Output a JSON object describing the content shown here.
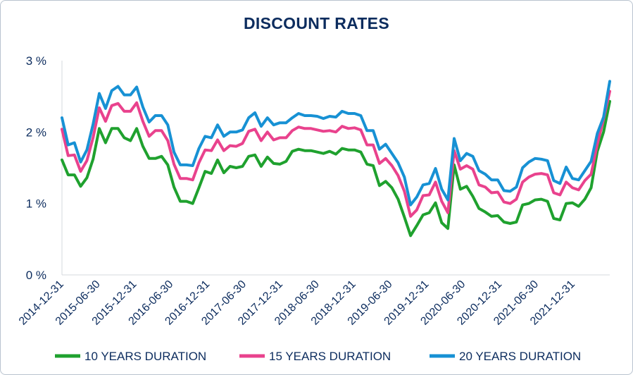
{
  "chart_data": {
    "type": "line",
    "title": "DISCOUNT RATES",
    "xlabel": "",
    "ylabel": "",
    "y_unit": "%",
    "ylim": [
      0,
      3
    ],
    "yticks": [
      "0 %",
      "1 %",
      "2 %",
      "3 %"
    ],
    "grid": false,
    "legend_position": "bottom",
    "x_tick_labels": [
      "2014-12-31",
      "2015-06-30",
      "2015-12-31",
      "2016-06-30",
      "2016-12-31",
      "2017-06-30",
      "2017-12-31",
      "2018-06-30",
      "2018-12-31",
      "2019-06-30",
      "2019-12-31",
      "2020-06-30",
      "2020-12-31",
      "2021-06-30",
      "2021-12-31"
    ],
    "series": [
      {
        "name": "10 YEARS DURATION",
        "color": "#1fa12e",
        "values": [
          1.61,
          1.4,
          1.4,
          1.24,
          1.36,
          1.62,
          2.05,
          1.85,
          2.05,
          2.05,
          1.92,
          1.88,
          2.05,
          1.8,
          1.63,
          1.63,
          1.66,
          1.54,
          1.23,
          1.03,
          1.03,
          1.0,
          1.22,
          1.45,
          1.42,
          1.61,
          1.43,
          1.52,
          1.5,
          1.52,
          1.66,
          1.68,
          1.52,
          1.65,
          1.56,
          1.55,
          1.59,
          1.73,
          1.76,
          1.74,
          1.74,
          1.72,
          1.7,
          1.73,
          1.69,
          1.77,
          1.75,
          1.75,
          1.72,
          1.55,
          1.53,
          1.25,
          1.31,
          1.22,
          1.06,
          0.81,
          0.55,
          0.69,
          0.84,
          0.87,
          1.01,
          0.73,
          0.65,
          1.54,
          1.2,
          1.24,
          1.1,
          0.93,
          0.88,
          0.82,
          0.83,
          0.74,
          0.72,
          0.74,
          0.98,
          1.0,
          1.05,
          1.06,
          1.03,
          0.79,
          0.77,
          1.0,
          1.01,
          0.96,
          1.06,
          1.22,
          1.73,
          2.0,
          2.43
        ]
      },
      {
        "name": "15 YEARS DURATION",
        "color": "#e9428d",
        "values": [
          2.04,
          1.67,
          1.68,
          1.45,
          1.6,
          1.92,
          2.34,
          2.15,
          2.37,
          2.4,
          2.29,
          2.29,
          2.41,
          2.15,
          1.94,
          2.02,
          2.02,
          1.88,
          1.55,
          1.35,
          1.35,
          1.33,
          1.57,
          1.75,
          1.74,
          1.89,
          1.74,
          1.81,
          1.8,
          1.84,
          2.01,
          2.04,
          1.88,
          2.0,
          1.89,
          1.92,
          1.92,
          2.02,
          2.07,
          2.05,
          2.05,
          2.03,
          2.01,
          2.02,
          2.0,
          2.08,
          2.05,
          2.06,
          2.03,
          1.82,
          1.82,
          1.56,
          1.63,
          1.53,
          1.39,
          1.17,
          0.82,
          0.91,
          1.11,
          1.12,
          1.3,
          1.03,
          0.87,
          1.74,
          1.48,
          1.53,
          1.48,
          1.26,
          1.23,
          1.15,
          1.16,
          1.02,
          1.0,
          1.06,
          1.3,
          1.37,
          1.41,
          1.42,
          1.4,
          1.15,
          1.12,
          1.3,
          1.22,
          1.19,
          1.32,
          1.41,
          1.83,
          2.18,
          2.57
        ]
      },
      {
        "name": "20 YEARS DURATION",
        "color": "#1791d4",
        "values": [
          2.2,
          1.82,
          1.85,
          1.58,
          1.75,
          2.11,
          2.54,
          2.33,
          2.58,
          2.64,
          2.52,
          2.52,
          2.63,
          2.35,
          2.14,
          2.23,
          2.23,
          2.1,
          1.72,
          1.54,
          1.54,
          1.53,
          1.77,
          1.94,
          1.92,
          2.1,
          1.94,
          2.0,
          2.0,
          2.03,
          2.2,
          2.27,
          2.08,
          2.2,
          2.1,
          2.13,
          2.13,
          2.2,
          2.26,
          2.23,
          2.23,
          2.22,
          2.19,
          2.22,
          2.21,
          2.29,
          2.26,
          2.26,
          2.23,
          2.02,
          2.02,
          1.76,
          1.83,
          1.7,
          1.57,
          1.37,
          0.98,
          1.09,
          1.26,
          1.28,
          1.49,
          1.2,
          1.05,
          1.91,
          1.6,
          1.7,
          1.66,
          1.46,
          1.41,
          1.33,
          1.33,
          1.18,
          1.17,
          1.23,
          1.5,
          1.58,
          1.63,
          1.62,
          1.6,
          1.32,
          1.28,
          1.51,
          1.35,
          1.33,
          1.46,
          1.59,
          1.98,
          2.21,
          2.71
        ]
      }
    ]
  }
}
